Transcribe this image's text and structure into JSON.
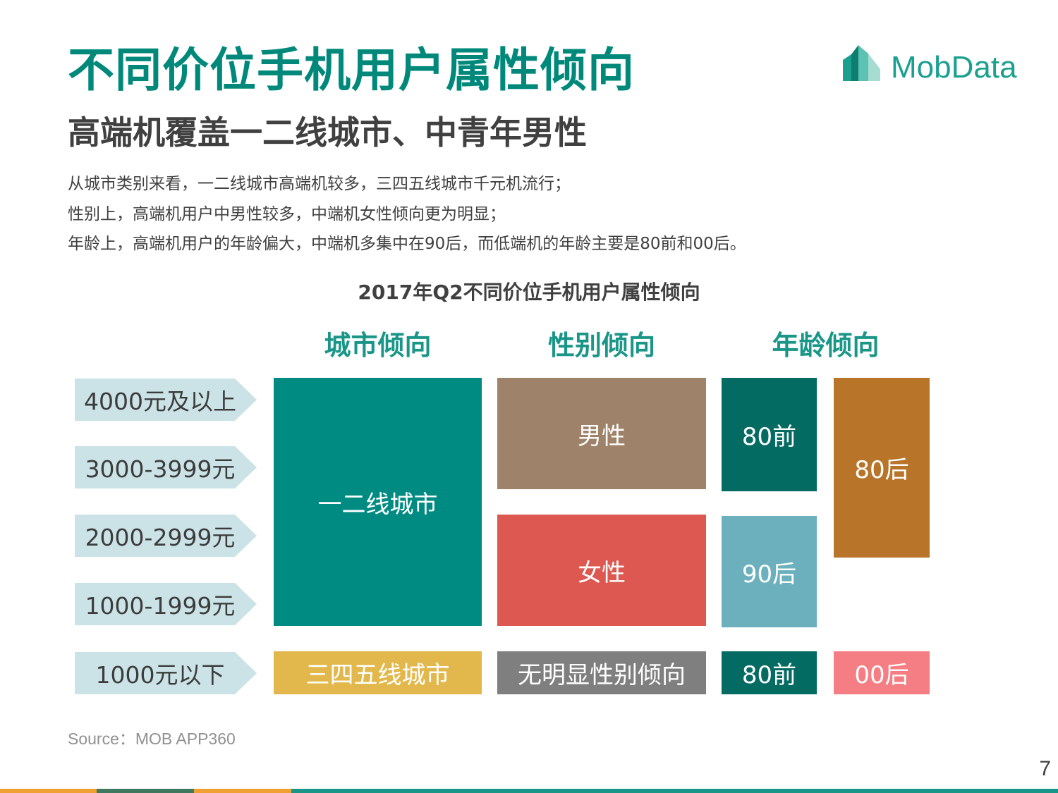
{
  "header": {
    "title": "不同价位手机用户属性倾向",
    "subtitle": "高端机覆盖一二线城市、中青年男性",
    "description": [
      "从城市类别来看，一二线城市高端机较多，三四五线城市千元机流行；",
      "性别上，高端机用户中男性较多，中端机女性倾向更为明显；",
      "年龄上，高端机用户的年龄偏大，中端机多集中在90后，而低端机的年龄主要是80前和00后。"
    ]
  },
  "logo": {
    "text": "MobData"
  },
  "chart": {
    "title": "2017年Q2不同价位手机用户属性倾向",
    "columns": [
      "城市倾向",
      "性别倾向",
      "年龄倾向"
    ],
    "price_tiers": [
      "4000元及以上",
      "3000-3999元",
      "2000-2999元",
      "1000-1999元",
      "1000元以下"
    ],
    "blocks": {
      "city_high": "一二线城市",
      "gender_male": "男性",
      "gender_female": "女性",
      "age_80_before": "80前",
      "age_90_after": "90后",
      "age_80_after": "80后",
      "city_low": "三四五线城市",
      "gender_low": "无明显性别倾向",
      "age_low_80_before": "80前",
      "age_low_00_after": "00后"
    }
  },
  "colors": {
    "teal": "#008b82",
    "dark_teal": "#046b62",
    "light_teal": "#6cb0be",
    "brown_gray": "#9e836a",
    "red": "#dc5851",
    "ochre": "#b8752a",
    "yellow": "#e2b84c",
    "gray": "#7f7f7f",
    "pink": "#f47e83",
    "arrow_bg": "#cbe3e6"
  },
  "footer": {
    "source": "Source：MOB APP360",
    "page_number": "7"
  }
}
